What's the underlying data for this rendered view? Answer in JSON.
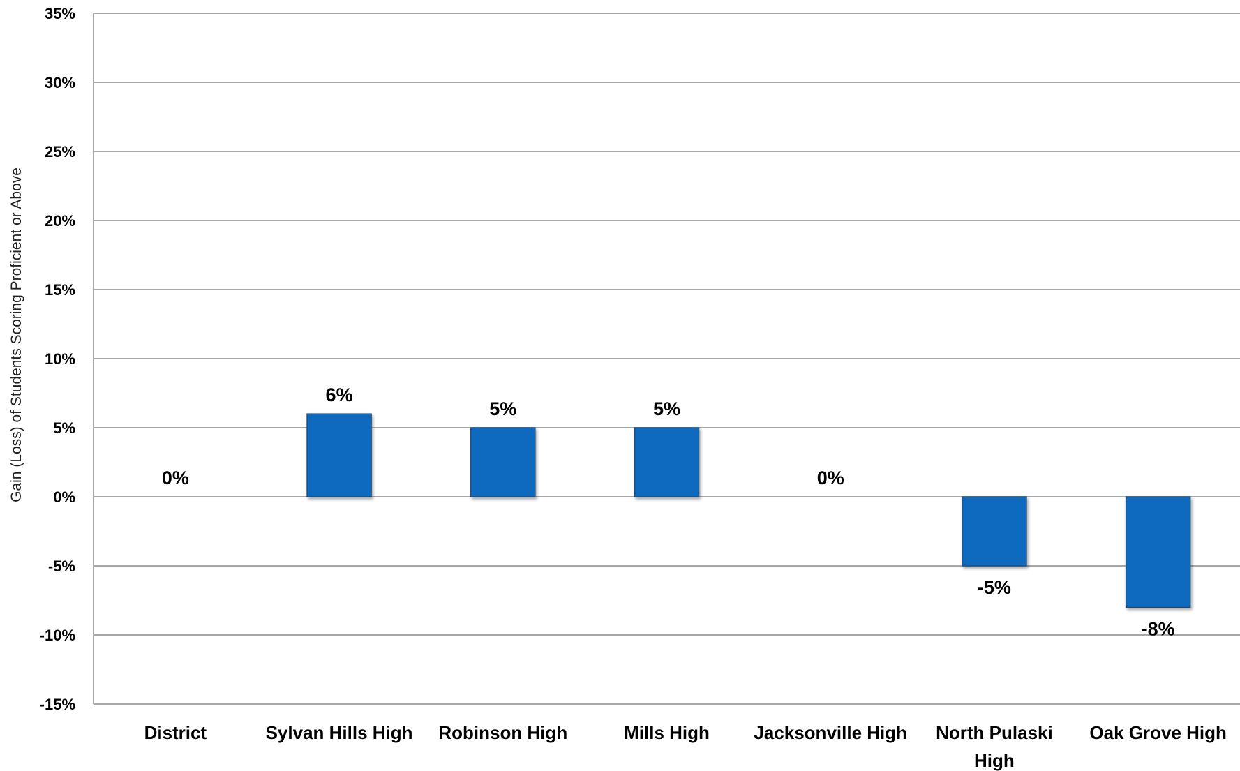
{
  "chart_data": {
    "type": "bar",
    "title": "",
    "xlabel": "",
    "ylabel": "Gain (Loss) of Students Scoring Proficient or Above",
    "categories": [
      "District",
      "Sylvan Hills High",
      "Robinson High",
      "Mills High",
      "Jacksonville High",
      "North Pulaski High",
      "Oak Grove High"
    ],
    "category_label_lines": [
      [
        "District"
      ],
      [
        "Sylvan Hills High"
      ],
      [
        "Robinson High"
      ],
      [
        "Mills High"
      ],
      [
        "Jacksonville High"
      ],
      [
        "North Pulaski",
        "High"
      ],
      [
        "Oak Grove High"
      ]
    ],
    "values": [
      0,
      6,
      5,
      5,
      0,
      -5,
      -8
    ],
    "data_labels": [
      "0%",
      "6%",
      "5%",
      "5%",
      "0%",
      "-5%",
      "-8%"
    ],
    "ylim": [
      -15,
      35
    ],
    "yticks": [
      35,
      30,
      25,
      20,
      15,
      10,
      5,
      0,
      -5,
      -10,
      -15
    ],
    "ytick_labels": [
      "35%",
      "30%",
      "25%",
      "20%",
      "15%",
      "10%",
      "5%",
      "0%",
      "-5%",
      "-10%",
      "-15%"
    ],
    "grid": true,
    "legend": "none",
    "bar_color": "#0A6BBE",
    "bar_edge_color": "#1F4E79",
    "grid_color": "#8C8C8C"
  }
}
